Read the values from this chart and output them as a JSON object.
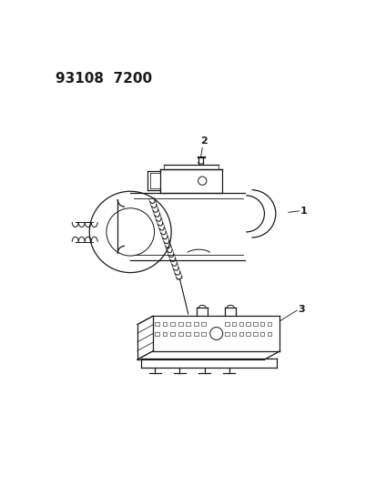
{
  "title": "93108  7200",
  "bg": "#ffffff",
  "lc": "#1a1a1a",
  "figsize": [
    4.14,
    5.33
  ],
  "dpi": 100,
  "labels": {
    "1": [
      355,
      218
    ],
    "2": [
      222,
      128
    ],
    "3": [
      355,
      358
    ]
  }
}
